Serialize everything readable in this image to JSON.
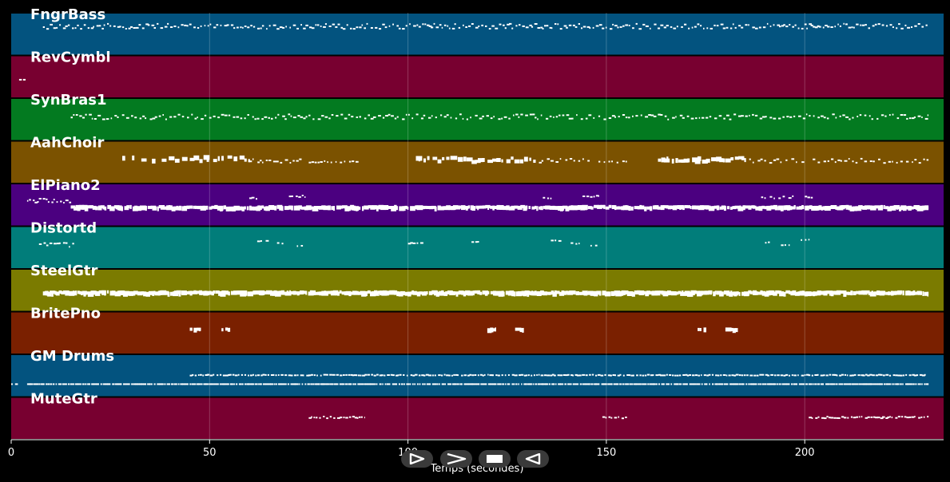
{
  "chart_data": {
    "type": "piano-roll",
    "xlabel": "Temps (secondes)",
    "xlim": [
      0,
      235
    ],
    "x_ticks": [
      0,
      50,
      100,
      150,
      200
    ],
    "tracks": [
      {
        "name": "FngrBass",
        "color": "#03537f",
        "segments": [
          {
            "start": 8,
            "end": 231,
            "density": 1.1,
            "pitch": 0.3,
            "spread": 0.06,
            "size": 1
          }
        ]
      },
      {
        "name": "RevCymbl",
        "color": "#780030",
        "segments": [
          {
            "start": 2,
            "end": 3.5,
            "density": 0.6,
            "pitch": 0.55,
            "spread": 0,
            "size": 1
          }
        ]
      },
      {
        "name": "SynBras1",
        "color": "#037a20",
        "segments": [
          {
            "start": 15,
            "end": 231,
            "density": 0.9,
            "pitch": 0.42,
            "spread": 0.06,
            "size": 1
          }
        ]
      },
      {
        "name": "AahChoir",
        "color": "#7b5200",
        "segments": [
          {
            "start": 28,
            "end": 45,
            "density": 0.4,
            "pitch": 0.38,
            "spread": 0.04,
            "size": 2
          },
          {
            "start": 45,
            "end": 60,
            "density": 0.7,
            "pitch": 0.38,
            "spread": 0.05,
            "size": 2
          },
          {
            "start": 60,
            "end": 73,
            "density": 0.9,
            "pitch": 0.45,
            "spread": 0.05,
            "size": 1
          },
          {
            "start": 75,
            "end": 88,
            "density": 0.9,
            "pitch": 0.47,
            "spread": 0.02,
            "size": 1
          },
          {
            "start": 102,
            "end": 132,
            "density": 0.8,
            "pitch": 0.4,
            "spread": 0.05,
            "size": 2
          },
          {
            "start": 133,
            "end": 146,
            "density": 0.8,
            "pitch": 0.45,
            "spread": 0.05,
            "size": 1
          },
          {
            "start": 148,
            "end": 155,
            "density": 0.8,
            "pitch": 0.47,
            "spread": 0.02,
            "size": 1
          },
          {
            "start": 163,
            "end": 185,
            "density": 0.8,
            "pitch": 0.4,
            "spread": 0.05,
            "size": 2
          },
          {
            "start": 186,
            "end": 200,
            "density": 0.8,
            "pitch": 0.45,
            "spread": 0.05,
            "size": 1
          },
          {
            "start": 202,
            "end": 231,
            "density": 0.8,
            "pitch": 0.45,
            "spread": 0.05,
            "size": 1
          }
        ]
      },
      {
        "name": "ElPiano2",
        "color": "#4b0080",
        "segments": [
          {
            "start": 4,
            "end": 15,
            "density": 1.2,
            "pitch": 0.38,
            "spread": 0.05,
            "size": 1
          },
          {
            "start": 15,
            "end": 231,
            "density": 1.4,
            "pitch": 0.52,
            "spread": 0.02,
            "size": 2
          },
          {
            "start": 60,
            "end": 62,
            "density": 1.0,
            "pitch": 0.32,
            "spread": 0.02,
            "size": 1
          },
          {
            "start": 70,
            "end": 74,
            "density": 1.0,
            "pitch": 0.28,
            "spread": 0.02,
            "size": 1
          },
          {
            "start": 134,
            "end": 136,
            "density": 1.0,
            "pitch": 0.32,
            "spread": 0.02,
            "size": 1
          },
          {
            "start": 144,
            "end": 148,
            "density": 1.0,
            "pitch": 0.28,
            "spread": 0.02,
            "size": 1
          },
          {
            "start": 189,
            "end": 197,
            "density": 0.8,
            "pitch": 0.3,
            "spread": 0.03,
            "size": 1
          },
          {
            "start": 200,
            "end": 202,
            "density": 1.0,
            "pitch": 0.3,
            "spread": 0.02,
            "size": 1
          }
        ]
      },
      {
        "name": "Distortd",
        "color": "#017d7a",
        "segments": [
          {
            "start": 7,
            "end": 16,
            "density": 1.0,
            "pitch": 0.42,
            "spread": 0.05,
            "size": 1
          },
          {
            "start": 62,
            "end": 65,
            "density": 0.8,
            "pitch": 0.34,
            "spread": 0.02,
            "size": 1
          },
          {
            "start": 67,
            "end": 69,
            "density": 0.8,
            "pitch": 0.38,
            "spread": 0.02,
            "size": 1
          },
          {
            "start": 72,
            "end": 74,
            "density": 0.8,
            "pitch": 0.44,
            "spread": 0.02,
            "size": 1
          },
          {
            "start": 100,
            "end": 104,
            "density": 1.0,
            "pitch": 0.38,
            "spread": 0.01,
            "size": 1
          },
          {
            "start": 116,
            "end": 118,
            "density": 1.0,
            "pitch": 0.36,
            "spread": 0.02,
            "size": 1
          },
          {
            "start": 136,
            "end": 139,
            "density": 0.8,
            "pitch": 0.32,
            "spread": 0.02,
            "size": 1
          },
          {
            "start": 141,
            "end": 144,
            "density": 0.8,
            "pitch": 0.38,
            "spread": 0.02,
            "size": 1
          },
          {
            "start": 146,
            "end": 148,
            "density": 0.8,
            "pitch": 0.44,
            "spread": 0.01,
            "size": 1
          },
          {
            "start": 190,
            "end": 191,
            "density": 1.0,
            "pitch": 0.36,
            "spread": 0.01,
            "size": 1
          },
          {
            "start": 194,
            "end": 196,
            "density": 1.0,
            "pitch": 0.42,
            "spread": 0.01,
            "size": 1
          },
          {
            "start": 199,
            "end": 201,
            "density": 1.0,
            "pitch": 0.3,
            "spread": 0.02,
            "size": 1
          }
        ]
      },
      {
        "name": "SteelGtr",
        "color": "#7b7b00",
        "segments": [
          {
            "start": 8,
            "end": 231,
            "density": 1.6,
            "pitch": 0.52,
            "spread": 0.02,
            "size": 2
          }
        ]
      },
      {
        "name": "BritePno",
        "color": "#7a2000",
        "segments": [
          {
            "start": 45,
            "end": 48,
            "density": 1.0,
            "pitch": 0.38,
            "spread": 0.01,
            "size": 2
          },
          {
            "start": 53,
            "end": 55,
            "density": 1.0,
            "pitch": 0.38,
            "spread": 0.01,
            "size": 2
          },
          {
            "start": 120,
            "end": 122,
            "density": 1.0,
            "pitch": 0.38,
            "spread": 0.01,
            "size": 2
          },
          {
            "start": 127,
            "end": 129,
            "density": 1.0,
            "pitch": 0.38,
            "spread": 0.01,
            "size": 2
          },
          {
            "start": 173,
            "end": 175,
            "density": 1.0,
            "pitch": 0.38,
            "spread": 0.01,
            "size": 2
          },
          {
            "start": 180,
            "end": 183,
            "density": 1.0,
            "pitch": 0.38,
            "spread": 0.01,
            "size": 2
          }
        ]
      },
      {
        "name": "GM Drums",
        "color": "#03537f",
        "segments": [
          {
            "start": 0,
            "end": 1.5,
            "density": 1.0,
            "pitch": 0.68,
            "spread": 0.0,
            "size": 1
          },
          {
            "start": 4,
            "end": 231,
            "density": 1.5,
            "pitch": 0.68,
            "spread": 0.0,
            "size": 1
          },
          {
            "start": 45,
            "end": 231,
            "density": 1.2,
            "pitch": 0.47,
            "spread": 0.01,
            "size": 1
          }
        ]
      },
      {
        "name": "MuteGtr",
        "color": "#780030",
        "segments": [
          {
            "start": 75,
            "end": 89,
            "density": 1.2,
            "pitch": 0.46,
            "spread": 0.02,
            "size": 1
          },
          {
            "start": 149,
            "end": 155,
            "density": 1.2,
            "pitch": 0.46,
            "spread": 0.02,
            "size": 1
          },
          {
            "start": 201,
            "end": 231,
            "density": 1.2,
            "pitch": 0.46,
            "spread": 0.02,
            "size": 1
          }
        ]
      }
    ]
  },
  "controls": [
    {
      "name": "play-button",
      "icon": "play-icon"
    },
    {
      "name": "forward-button",
      "icon": "forward-icon"
    },
    {
      "name": "stop-button",
      "icon": "stop-icon"
    },
    {
      "name": "rewind-button",
      "icon": "rewind-icon"
    }
  ],
  "colors": {
    "background": "#000000",
    "note": "#ffffff",
    "grid": "#ffffff"
  }
}
